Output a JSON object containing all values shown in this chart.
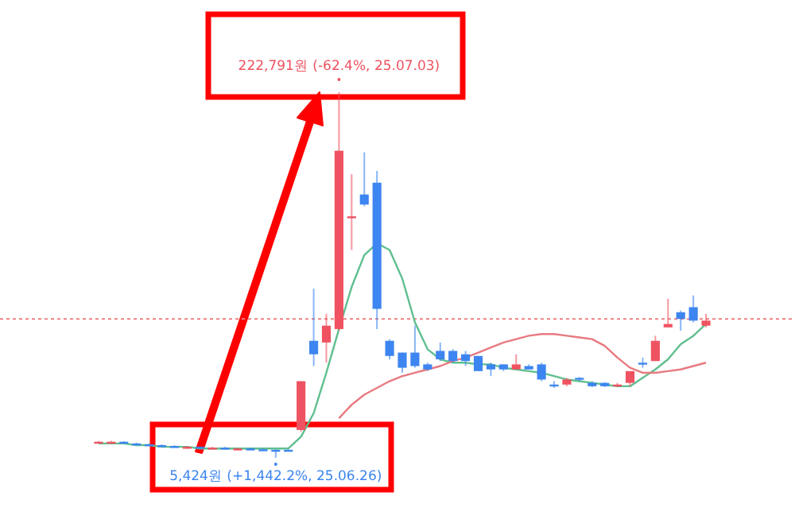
{
  "chart_data": {
    "type": "candlestick",
    "categories": [
      null,
      null,
      null,
      null,
      null,
      null,
      null,
      null,
      null,
      null,
      null,
      null,
      null,
      null,
      null,
      null,
      null,
      null,
      null,
      null,
      null,
      null,
      null,
      null,
      null,
      null,
      null,
      null,
      null,
      null,
      null,
      null,
      null,
      null,
      null,
      null,
      null,
      null,
      null,
      null,
      null,
      null,
      null,
      null,
      null,
      null,
      null,
      null,
      null
    ],
    "ohlc": [
      [
        14500,
        15500,
        14000,
        15000
      ],
      [
        14500,
        15500,
        14000,
        15000
      ],
      [
        15000,
        15300,
        13800,
        14000
      ],
      [
        14000,
        14500,
        13500,
        13500
      ],
      [
        13500,
        14000,
        12500,
        13000
      ],
      [
        13000,
        13500,
        12000,
        12500
      ],
      [
        12500,
        13000,
        11500,
        12000
      ],
      [
        11500,
        12500,
        11000,
        12000
      ],
      [
        12000,
        12300,
        11000,
        11500
      ],
      [
        11000,
        12000,
        10500,
        11500
      ],
      [
        11500,
        12000,
        10500,
        11000
      ],
      [
        10500,
        11500,
        10000,
        11000
      ],
      [
        11000,
        11500,
        10000,
        10500
      ],
      [
        10500,
        11000,
        10000,
        10200
      ],
      [
        10200,
        10500,
        5424,
        10000
      ],
      [
        10200,
        10500,
        9500,
        10000
      ],
      [
        22000,
        51000,
        21000,
        51000
      ],
      [
        75000,
        106000,
        60000,
        67000
      ],
      [
        74000,
        91000,
        62000,
        84000
      ],
      [
        82000,
        222791,
        81000,
        188000
      ],
      [
        148000,
        174000,
        129000,
        149000
      ],
      [
        162000,
        187000,
        155000,
        156000
      ],
      [
        169000,
        176000,
        82000,
        94000
      ],
      [
        75000,
        76000,
        64000,
        66000
      ],
      [
        68000,
        68000,
        56000,
        59000
      ],
      [
        68000,
        84000,
        59000,
        60000
      ],
      [
        61000,
        62000,
        57000,
        58000
      ],
      [
        69000,
        74000,
        63000,
        64000
      ],
      [
        69000,
        70000,
        62000,
        63000
      ],
      [
        67000,
        69000,
        60000,
        63000
      ],
      [
        66000,
        66000,
        57000,
        57000
      ],
      [
        61000,
        62000,
        54000,
        58000
      ],
      [
        61000,
        61000,
        57000,
        58000
      ],
      [
        58000,
        67000,
        58000,
        61000
      ],
      [
        60000,
        61000,
        58000,
        58000
      ],
      [
        61000,
        62000,
        51000,
        52000
      ],
      [
        49000,
        51000,
        47000,
        48500
      ],
      [
        49000,
        53000,
        48000,
        52000
      ],
      [
        53000,
        53500,
        51000,
        52000
      ],
      [
        50000,
        51000,
        47500,
        48000
      ],
      [
        50000,
        50500,
        47500,
        48000
      ],
      [
        48000,
        50000,
        47500,
        49000
      ],
      [
        50000,
        57000,
        48000,
        57000
      ],
      [
        62000,
        65000,
        59000,
        61000
      ],
      [
        63000,
        78000,
        63000,
        75000
      ],
      [
        83000,
        100000,
        83000,
        85000
      ],
      [
        92000,
        93000,
        81000,
        88000
      ],
      [
        95000,
        102000,
        86000,
        87000
      ],
      [
        84000,
        91000,
        83000,
        87000
      ]
    ],
    "colors": [
      "#ef5361",
      "#ef5361",
      "#3d85f0",
      "#3d85f0",
      "#3d85f0",
      "#3d85f0",
      "#3d85f0",
      "#ef5361",
      "#3d85f0",
      "#ef5361",
      "#3d85f0",
      "#ef5361",
      "#3d85f0",
      "#3d85f0",
      "#3d85f0",
      "#3d85f0",
      "#ef5361",
      "#3d85f0",
      "#ef5361",
      "#ef5361",
      "#ef5361",
      "#3d85f0",
      "#3d85f0",
      "#3d85f0",
      "#3d85f0",
      "#3d85f0",
      "#3d85f0",
      "#3d85f0",
      "#3d85f0",
      "#3d85f0",
      "#3d85f0",
      "#3d85f0",
      "#3d85f0",
      "#ef5361",
      "#3d85f0",
      "#3d85f0",
      "#3d85f0",
      "#ef5361",
      "#3d85f0",
      "#3d85f0",
      "#3d85f0",
      "#ef5361",
      "#ef5361",
      "#3d85f0",
      "#ef5361",
      "#ef5361",
      "#3d85f0",
      "#3d85f0",
      "#ef5361"
    ],
    "series": [
      {
        "type": "line",
        "color": "#5fbf8f",
        "values": [
          14000,
          14000,
          14000,
          13000,
          13000,
          12000,
          12000,
          12000,
          11000,
          11000,
          11000,
          11000,
          11000,
          11000,
          11000,
          11000,
          18000,
          32000,
          56000,
          82000,
          107000,
          126000,
          133000,
          129000,
          112000,
          86000,
          70000,
          64000,
          62000,
          62000,
          61000,
          61000,
          59000,
          58000,
          57000,
          56000,
          54000,
          52000,
          51000,
          50000,
          49000,
          48000,
          48000,
          53000,
          58000,
          64000,
          73000,
          78000,
          85000
        ]
      },
      {
        "type": "line",
        "color": "#e87a80",
        "values": [
          null,
          null,
          null,
          null,
          null,
          null,
          null,
          null,
          null,
          null,
          null,
          null,
          null,
          null,
          null,
          null,
          null,
          null,
          null,
          29000,
          37000,
          43000,
          47000,
          51000,
          54000,
          56000,
          58000,
          60000,
          63000,
          65000,
          68000,
          71000,
          74000,
          76000,
          78000,
          79000,
          79000,
          78000,
          77000,
          76000,
          72000,
          65000,
          59000,
          56000,
          56000,
          57000,
          58000,
          60000,
          62000
        ]
      }
    ],
    "ref_lines": [
      {
        "axis": "y",
        "value": 88000,
        "color": "#f08080",
        "line_style": "dotted"
      }
    ],
    "annotations": [
      {
        "text": "222,791원 (-62.4%, 25.07.03)",
        "y": 222791
      },
      {
        "text": "5,424원 (+1,442.2%, 25.06.26)",
        "y": 5424
      }
    ]
  }
}
